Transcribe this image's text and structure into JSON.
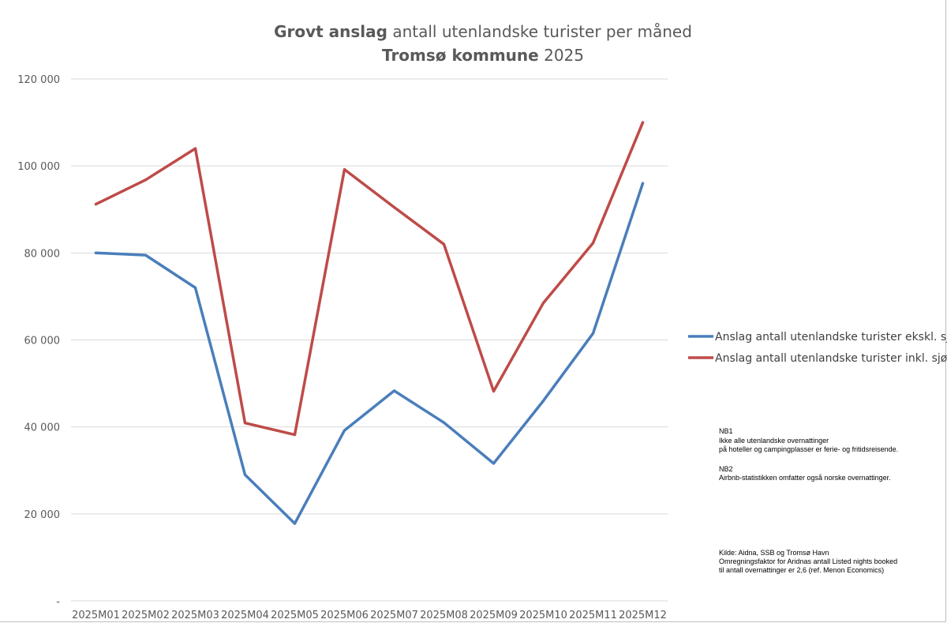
{
  "chart_data": {
    "type": "line",
    "title": {
      "line1_bold": "Grovt anslag",
      "line1_rest": " antall utenlandske turister per måned",
      "line2_bold": "Tromsø kommune",
      "line2_rest": " 2025"
    },
    "categories": [
      "2025M01",
      "2025M02",
      "2025M03",
      "2025M04",
      "2025M05",
      "2025M06",
      "2025M07",
      "2025M08",
      "2025M09",
      "2025M10",
      "2025M11",
      "2025M12"
    ],
    "ylim": [
      0,
      120000
    ],
    "y_ticks": [
      {
        "value": 0,
        "label": "-"
      },
      {
        "value": 20000,
        "label": "20 000"
      },
      {
        "value": 40000,
        "label": "40 000"
      },
      {
        "value": 60000,
        "label": "60 000"
      },
      {
        "value": 80000,
        "label": "80 000"
      },
      {
        "value": 100000,
        "label": "100 000"
      },
      {
        "value": 120000,
        "label": "120 000"
      }
    ],
    "grid": true,
    "legend_position": "right",
    "series": [
      {
        "name": "Anslag antall utenlandske turister ekskl. sjøveien",
        "color": "#4a7ebb",
        "values": [
          80000,
          79500,
          72000,
          29000,
          17800,
          39200,
          48300,
          41000,
          31600,
          46000,
          61500,
          96000
        ]
      },
      {
        "name": "Anslag antall utenlandske turister inkl. sjøveien",
        "color": "#be4b48",
        "values": [
          91200,
          96800,
          104000,
          40900,
          38200,
          99200,
          90500,
          82000,
          48200,
          68500,
          82300,
          110000
        ]
      }
    ],
    "annotations": {
      "nb1": [
        "NB1",
        "Ikke alle utenlandske overnattinger",
        "på hoteller og campingplasser er ferie- og fritidsreisende."
      ],
      "nb2": [
        "NB2",
        "Airbnb-statistikken omfatter også norske overnattinger."
      ],
      "source": [
        "Kilde: Aidna, SSB og Tromsø Havn",
        "Omregningsfaktor for Aridnas antall Listed nights booked",
        "til antall overnattinger er 2,6 (ref. Menon Economics)"
      ]
    }
  }
}
